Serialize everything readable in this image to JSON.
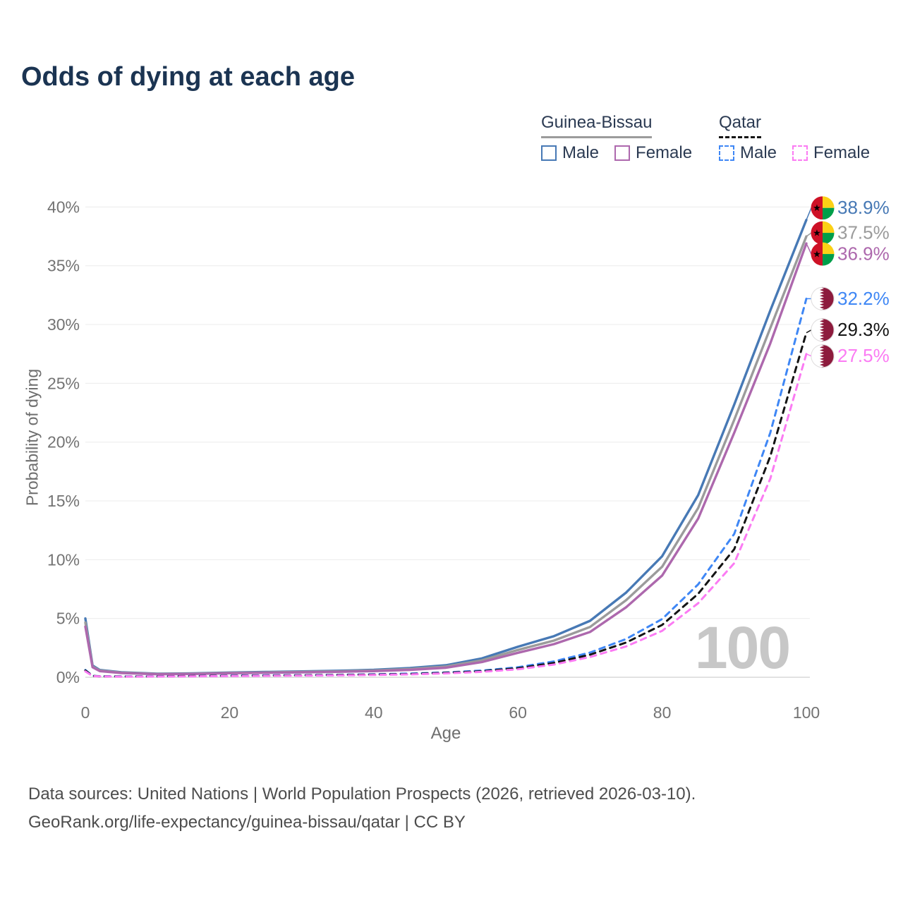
{
  "title": "Odds of dying at each age",
  "legend": {
    "groups": [
      {
        "label": "Guinea-Bissau",
        "line_color": "#9b9b9b",
        "line_dash": false,
        "items": [
          {
            "label": "Male",
            "color": "#4779b5",
            "dash": false
          },
          {
            "label": "Female",
            "color": "#ad68ad",
            "dash": false
          }
        ]
      },
      {
        "label": "Qatar",
        "line_color": "#141414",
        "line_dash": true,
        "items": [
          {
            "label": "Male",
            "color": "#3f87f5",
            "dash": true
          },
          {
            "label": "Female",
            "color": "#fb7bf3",
            "dash": true
          }
        ]
      }
    ]
  },
  "watermark": "100",
  "footer": {
    "line1": "Data sources: United Nations | World Population Prospects (2026, retrieved 2026-03-10).",
    "line2": "GeoRank.org/life-expectancy/guinea-bissau/qatar | CC BY"
  },
  "chart_data": {
    "type": "line",
    "title": "Odds of dying at each age",
    "xlabel": "Age",
    "ylabel": "Probability of dying",
    "xlim": [
      0,
      100
    ],
    "ylim": [
      0,
      40
    ],
    "grid": "horizontal",
    "legend_position": "top-right",
    "x_tick_labels": [
      "0",
      "20",
      "40",
      "60",
      "80",
      "100"
    ],
    "y_tick_labels": [
      "0%",
      "5%",
      "10%",
      "15%",
      "20%",
      "25%",
      "30%",
      "35%",
      "40%"
    ],
    "x": [
      0,
      1,
      2,
      5,
      10,
      15,
      20,
      25,
      30,
      35,
      40,
      45,
      50,
      55,
      60,
      65,
      70,
      75,
      80,
      85,
      90,
      95,
      100
    ],
    "series": [
      {
        "name": "Guinea-Bissau Male",
        "country": "Guinea-Bissau",
        "sex": "Male",
        "color": "#4779b5",
        "dash": false,
        "flag": "guinea-bissau",
        "end_label": "38.9%",
        "values": [
          5.0,
          1.0,
          0.62,
          0.42,
          0.3,
          0.33,
          0.4,
          0.45,
          0.5,
          0.55,
          0.63,
          0.78,
          1.02,
          1.6,
          2.6,
          3.5,
          4.8,
          7.2,
          10.3,
          15.5,
          23.2,
          31.2,
          38.9
        ]
      },
      {
        "name": "Guinea-Bissau Total",
        "country": "Guinea-Bissau",
        "sex": "Total",
        "color": "#9b9b9b",
        "dash": false,
        "flag": "guinea-bissau",
        "end_label": "37.5%",
        "values": [
          4.65,
          0.92,
          0.57,
          0.39,
          0.28,
          0.3,
          0.37,
          0.41,
          0.46,
          0.5,
          0.57,
          0.7,
          0.91,
          1.44,
          2.32,
          3.12,
          4.28,
          6.55,
          9.4,
          14.4,
          21.9,
          29.7,
          37.5
        ]
      },
      {
        "name": "Guinea-Bissau Female",
        "country": "Guinea-Bissau",
        "sex": "Female",
        "color": "#ad68ad",
        "dash": false,
        "flag": "guinea-bissau",
        "end_label": "36.9%",
        "values": [
          4.3,
          0.85,
          0.52,
          0.36,
          0.26,
          0.28,
          0.34,
          0.38,
          0.42,
          0.46,
          0.52,
          0.63,
          0.81,
          1.29,
          2.08,
          2.82,
          3.85,
          5.95,
          8.65,
          13.5,
          20.8,
          28.4,
          36.9
        ]
      },
      {
        "name": "Qatar Male",
        "country": "Qatar",
        "sex": "Male",
        "color": "#3f87f5",
        "dash": true,
        "flag": "qatar",
        "end_label": "32.2%",
        "values": [
          0.62,
          0.12,
          0.09,
          0.07,
          0.08,
          0.11,
          0.14,
          0.16,
          0.18,
          0.21,
          0.25,
          0.31,
          0.41,
          0.57,
          0.85,
          1.35,
          2.1,
          3.25,
          4.95,
          7.9,
          12.2,
          20.8,
          32.2
        ]
      },
      {
        "name": "Qatar Total",
        "country": "Qatar",
        "sex": "Total",
        "color": "#141414",
        "dash": true,
        "flag": "qatar",
        "end_label": "29.3%",
        "values": [
          0.57,
          0.11,
          0.08,
          0.06,
          0.07,
          0.1,
          0.12,
          0.14,
          0.16,
          0.19,
          0.22,
          0.27,
          0.37,
          0.51,
          0.77,
          1.22,
          1.92,
          2.95,
          4.45,
          7.1,
          10.9,
          18.8,
          29.3
        ]
      },
      {
        "name": "Qatar Female",
        "country": "Qatar",
        "sex": "Female",
        "color": "#fb7bf3",
        "dash": true,
        "flag": "qatar",
        "end_label": "27.5%",
        "values": [
          0.5,
          0.1,
          0.07,
          0.05,
          0.06,
          0.08,
          0.1,
          0.12,
          0.14,
          0.16,
          0.19,
          0.24,
          0.33,
          0.46,
          0.68,
          1.08,
          1.72,
          2.62,
          3.95,
          6.3,
          9.7,
          16.9,
          27.5
        ]
      }
    ]
  }
}
